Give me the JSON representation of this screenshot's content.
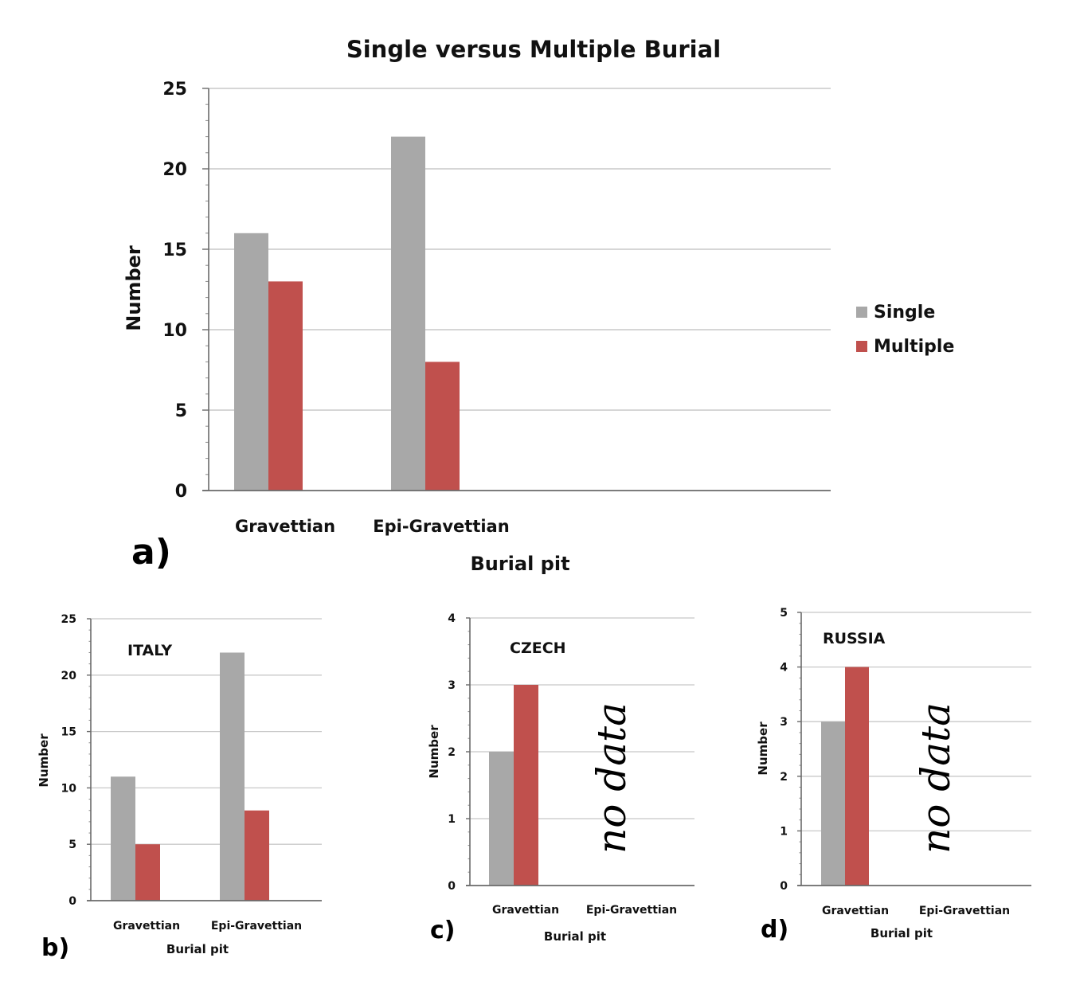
{
  "figure": {
    "legend": [
      {
        "label": "Single",
        "color": "#a8a8a8"
      },
      {
        "label": "Multiple",
        "color": "#c0504d"
      }
    ]
  },
  "chart_data": [
    {
      "type": "bar",
      "panel_label": "a)",
      "title": "Single versus Multiple Burial",
      "xlabel": "Burial pit",
      "ylabel": "Number",
      "categories": [
        "Gravettian",
        "Epi-Gravettian"
      ],
      "series": [
        {
          "name": "Single",
          "values": [
            16,
            22
          ]
        },
        {
          "name": "Multiple",
          "values": [
            13,
            8
          ]
        }
      ],
      "ylim": [
        0,
        25
      ],
      "yticks": [
        0,
        5,
        10,
        15,
        20,
        25
      ],
      "grid": true,
      "legend_position": "right"
    },
    {
      "type": "bar",
      "panel_label": "b)",
      "annotation": "ITALY",
      "xlabel": "Burial pit",
      "ylabel": "Number",
      "categories": [
        "Gravettian",
        "Epi-Gravettian"
      ],
      "series": [
        {
          "name": "Single",
          "values": [
            11,
            22
          ]
        },
        {
          "name": "Multiple",
          "values": [
            5,
            8
          ]
        }
      ],
      "ylim": [
        0,
        25
      ],
      "yticks": [
        0,
        5,
        10,
        15,
        20,
        25
      ],
      "grid": true
    },
    {
      "type": "bar",
      "panel_label": "c)",
      "annotation": "CZECH",
      "no_data_text": "no data",
      "xlabel": "Burial pit",
      "ylabel": "Number",
      "categories": [
        "Gravettian",
        "Epi-Gravettian"
      ],
      "series": [
        {
          "name": "Single",
          "values": [
            2,
            null
          ]
        },
        {
          "name": "Multiple",
          "values": [
            3,
            null
          ]
        }
      ],
      "ylim": [
        0,
        4
      ],
      "yticks": [
        0,
        1,
        2,
        3,
        4
      ],
      "grid": true
    },
    {
      "type": "bar",
      "panel_label": "d)",
      "annotation": "RUSSIA",
      "no_data_text": "no data",
      "xlabel": "Burial pit",
      "ylabel": "Number",
      "categories": [
        "Gravettian",
        "Epi-Gravettian"
      ],
      "series": [
        {
          "name": "Single",
          "values": [
            3,
            null
          ]
        },
        {
          "name": "Multiple",
          "values": [
            4,
            null
          ]
        }
      ],
      "ylim": [
        0,
        5
      ],
      "yticks": [
        0,
        1,
        2,
        3,
        4,
        5
      ],
      "grid": true
    }
  ]
}
